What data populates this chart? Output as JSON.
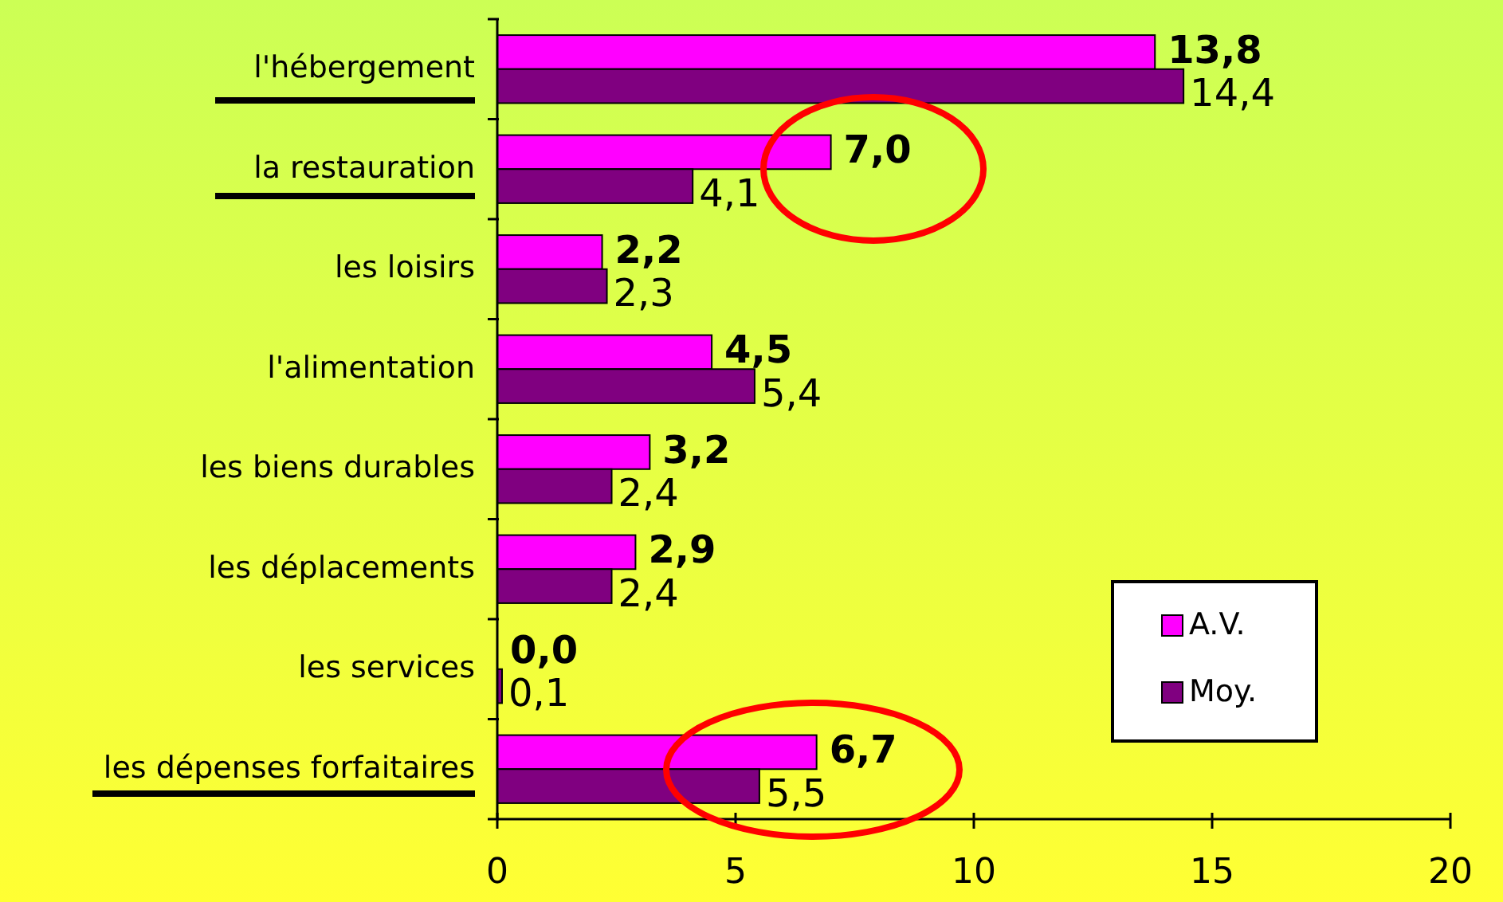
{
  "chart_data": {
    "type": "bar",
    "orientation": "horizontal",
    "categories": [
      "l'hébergement",
      "la restauration",
      "les loisirs",
      "l'alimentation",
      "les biens durables",
      "les déplacements",
      "les services",
      "les dépenses forfaitaires"
    ],
    "series": [
      {
        "name": "A.V.",
        "color": "#ff00ff",
        "values": [
          13.8,
          7.0,
          2.2,
          4.5,
          3.2,
          2.9,
          0.0,
          6.7
        ],
        "value_labels": [
          "13,8",
          "7,0",
          "2,2",
          "4,5",
          "3,2",
          "2,9",
          "0,0",
          "6,7"
        ]
      },
      {
        "name": "Moy.",
        "color": "#800080",
        "values": [
          14.4,
          4.1,
          2.3,
          5.4,
          2.4,
          2.4,
          0.1,
          5.5
        ],
        "value_labels": [
          "14,4",
          "4,1",
          "2,3",
          "5,4",
          "2,4",
          "2,4",
          "0,1",
          "5,5"
        ]
      }
    ],
    "xlim": [
      0,
      20
    ],
    "xticks": [
      0,
      5,
      10,
      15,
      20
    ],
    "grid": false,
    "legend": "bottom right"
  }
}
